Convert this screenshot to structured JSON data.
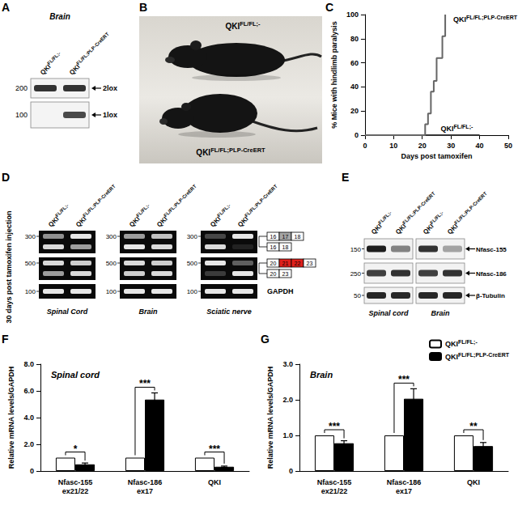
{
  "panel_letters": [
    "A",
    "B",
    "C",
    "D",
    "E",
    "F",
    "G"
  ],
  "panels": {
    "A": {
      "tissue": "Brain",
      "lanes": [
        "QKIFL/FL;-",
        "QKIFL/FL;PLP-CreERT"
      ],
      "blots": [
        {
          "marker": 200,
          "band": "2lox",
          "intensity": [
            0.85,
            0.85
          ]
        },
        {
          "marker": 100,
          "band": "1lox",
          "intensity": [
            0,
            0.75
          ]
        }
      ]
    },
    "B": {
      "labels": [
        "QKIFL/FL;-",
        "QKIFL/FL;PLP-CreERT"
      ]
    },
    "D": {
      "side_label": "30 days post tamoxifen injection",
      "markers": [
        300,
        500,
        100
      ],
      "tissues": [
        {
          "name": "Spinal Cord",
          "lanes": [
            "QKIFL/FL;-",
            "QKIFL/FL;PLP-CreERT"
          ],
          "bands": [
            [
              [
                0.55,
                0.9
              ],
              [
                0.85,
                0.6
              ]
            ],
            [
              [
                0.85,
                0.8
              ],
              [
                0.6,
                0.85
              ]
            ],
            [
              [
                0.9,
                0.9
              ]
            ]
          ]
        },
        {
          "name": "Brain",
          "lanes": [
            "QKIFL/FL;-",
            "QKIFL/FL;PLP-CreERT"
          ],
          "bands": [
            [
              [
                0.6,
                0.75
              ],
              [
                0.9,
                0.85
              ]
            ],
            [
              [
                0.85,
                0.8
              ],
              [
                0.8,
                0.85
              ]
            ],
            [
              [
                0.9,
                0.9
              ]
            ]
          ]
        },
        {
          "name": "Sciatic nerve",
          "lanes": [
            "QKIFL/FL;-",
            "QKIFL/FL;PLP-CreERT"
          ],
          "bands": [
            [
              [
                0.25,
                0.9
              ],
              [
                0.85,
                0.1
              ]
            ],
            [
              [
                0.9,
                0.35
              ],
              [
                0.2,
                0.9
              ]
            ],
            [
              [
                0.9,
                0.9
              ]
            ]
          ]
        }
      ],
      "products": [
        [
          [
            {
              "label": "16",
              "color": "#ffffff"
            },
            {
              "label": "17",
              "color": "#a6a6a6"
            },
            {
              "label": "18",
              "color": "#ffffff"
            }
          ],
          [
            {
              "label": "16",
              "color": "#ffffff"
            },
            {
              "label": "18",
              "color": "#ffffff"
            }
          ]
        ],
        [
          [
            {
              "label": "20",
              "color": "#ffffff"
            },
            {
              "label": "21",
              "color": "#e0201b"
            },
            {
              "label": "22",
              "color": "#e0201b"
            },
            {
              "label": "23",
              "color": "#ffffff"
            }
          ],
          [
            {
              "label": "20",
              "color": "#ffffff"
            },
            {
              "label": "23",
              "color": "#ffffff"
            }
          ]
        ]
      ],
      "reference": "GAPDH"
    },
    "E": {
      "tissues": [
        {
          "name": "Spinal cord",
          "lanes": [
            "QKIFL/FL;-",
            "QKIFL/FL;PLP-CreERT"
          ]
        },
        {
          "name": "Brain",
          "lanes": [
            "QKIFL/FL;-",
            "QKIFL/FL;PLP-CreERT"
          ]
        }
      ],
      "rows": [
        {
          "marker": 150,
          "band": "Nfasc-155",
          "intensity": [
            0.95,
            0.5,
            0.85,
            0.35
          ]
        },
        {
          "marker": 250,
          "band": "Nfasc-186",
          "intensity": [
            0.8,
            0.85,
            0.8,
            0.85
          ]
        },
        {
          "marker": 50,
          "band": "β-Tubulin",
          "intensity": [
            0.9,
            0.9,
            0.9,
            0.9
          ]
        }
      ]
    }
  },
  "chart_data": [
    {
      "type": "line",
      "x_label": "Days post tamoxifen",
      "y_label": "% Mice with hindlimb paralysis",
      "xlim": [
        0,
        50
      ],
      "xticks": [
        0,
        10,
        20,
        30,
        40,
        50
      ],
      "ylim": [
        0,
        100
      ],
      "yticks": [
        0,
        20,
        40,
        60,
        80,
        100
      ],
      "series": [
        {
          "name": "QKIFL/FL;-",
          "color": "#333333",
          "x": [
            0,
            40
          ],
          "values": [
            0,
            0
          ]
        },
        {
          "name": "QKIFL/FL;PLP-CreERT",
          "color": "#666666",
          "x": [
            0,
            21,
            22,
            23,
            24,
            25,
            27,
            28
          ],
          "values": [
            0,
            9,
            18,
            36,
            45,
            64,
            82,
            100
          ]
        }
      ]
    },
    {
      "type": "bar",
      "title": "Spinal cord",
      "y_label": "Relative mRNA levels/GAPDH",
      "categories": [
        "Nfasc-155\nex21/22",
        "Nfasc-186\nex17",
        "QKI"
      ],
      "ylim": [
        0,
        8
      ],
      "yticks": [
        0,
        {
          "value": 2,
          "label": "2.0"
        },
        {
          "value": 4,
          "label": "4.0"
        },
        {
          "value": 6,
          "label": "6.0"
        },
        {
          "value": 8,
          "label": "8.0"
        }
      ],
      "series": [
        {
          "name": "QKIFL/FL;-",
          "color": "#ffffff",
          "values": [
            1,
            1,
            1
          ]
        },
        {
          "name": "QKIFL/FL;PLP-CreERT",
          "color": "#000000",
          "values": [
            0.5,
            5.35,
            0.32
          ],
          "errors": [
            0.1,
            0.5,
            0.05
          ]
        }
      ],
      "annotations": [
        "*",
        "***",
        "***"
      ]
    },
    {
      "type": "bar",
      "title": "Brain",
      "y_label": "Relative mRNA levels/GAPDH",
      "categories": [
        "Nfasc-155\nex21/22",
        "Nfasc-186\nex17",
        "QKI"
      ],
      "ylim": [
        0,
        3
      ],
      "yticks": [
        0,
        {
          "value": 1,
          "label": "1.0"
        },
        {
          "value": 2,
          "label": "2.0"
        },
        {
          "value": 3,
          "label": "3.0"
        }
      ],
      "series": [
        {
          "name": "QKIFL/FL;-",
          "color": "#ffffff",
          "values": [
            1,
            1,
            1
          ]
        },
        {
          "name": "QKIFL/FL;PLP-CreERT",
          "color": "#000000",
          "values": [
            0.78,
            2.03,
            0.7
          ],
          "errors": [
            0.07,
            0.28,
            0.1
          ]
        }
      ],
      "annotations": [
        "***",
        "***",
        "**"
      ],
      "legend": "top-right"
    }
  ]
}
